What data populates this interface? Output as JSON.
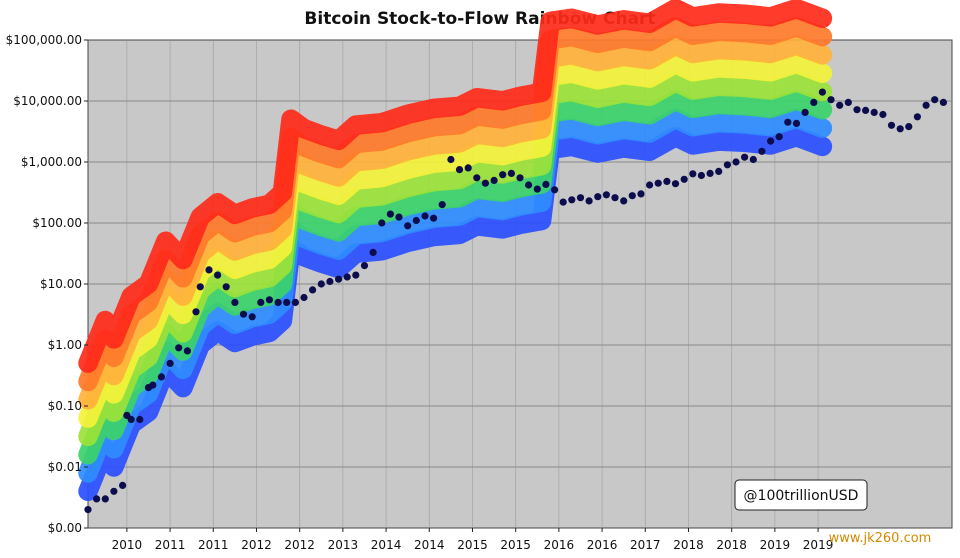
{
  "chart_data": {
    "type": "scatter",
    "title": "Bitcoin Stock-to-Flow Rainbow Chart",
    "xlabel": "",
    "ylabel": "",
    "y_scale": "log",
    "ylim": [
      0.001,
      100000
    ],
    "yticks": [
      {
        "value": 0.001,
        "label": "$0.00"
      },
      {
        "value": 0.01,
        "label": "$0.01"
      },
      {
        "value": 0.1,
        "label": "$0.10"
      },
      {
        "value": 1,
        "label": "$1.00"
      },
      {
        "value": 10,
        "label": "$10.00"
      },
      {
        "value": 100,
        "label": "$100.00"
      },
      {
        "value": 1000,
        "label": "$1,000.00"
      },
      {
        "value": 10000,
        "label": "$10,000.00"
      },
      {
        "value": 100000,
        "label": "$100,000.00"
      }
    ],
    "xticks": [
      {
        "pos": 0.045,
        "label": "2010"
      },
      {
        "pos": 0.095,
        "label": "2011"
      },
      {
        "pos": 0.145,
        "label": "2011"
      },
      {
        "pos": 0.195,
        "label": "2012"
      },
      {
        "pos": 0.245,
        "label": "2012"
      },
      {
        "pos": 0.295,
        "label": "2013"
      },
      {
        "pos": 0.345,
        "label": "2014"
      },
      {
        "pos": 0.395,
        "label": "2014"
      },
      {
        "pos": 0.445,
        "label": "2015"
      },
      {
        "pos": 0.495,
        "label": "2015"
      },
      {
        "pos": 0.545,
        "label": "2016"
      },
      {
        "pos": 0.595,
        "label": "2016"
      },
      {
        "pos": 0.645,
        "label": "2017"
      },
      {
        "pos": 0.695,
        "label": "2018"
      },
      {
        "pos": 0.745,
        "label": "2018"
      },
      {
        "pos": 0.795,
        "label": "2019"
      },
      {
        "pos": 0.845,
        "label": "2019"
      }
    ],
    "band_colors": [
      "#2a4fff",
      "#2f8cff",
      "#3bd36a",
      "#9be23a",
      "#f3f23a",
      "#ffb23a",
      "#ff7a2a",
      "#ff2a1a"
    ],
    "band_base": [
      [
        0.0,
        0.004
      ],
      [
        0.02,
        0.02
      ],
      [
        0.03,
        0.01
      ],
      [
        0.05,
        0.05
      ],
      [
        0.07,
        0.08
      ],
      [
        0.09,
        0.4
      ],
      [
        0.11,
        0.2
      ],
      [
        0.13,
        1.0
      ],
      [
        0.15,
        1.7
      ],
      [
        0.17,
        1.1
      ],
      [
        0.19,
        1.4
      ],
      [
        0.21,
        1.6
      ],
      [
        0.225,
        2.5
      ],
      [
        0.235,
        40
      ],
      [
        0.25,
        28
      ],
      [
        0.27,
        22
      ],
      [
        0.29,
        18
      ],
      [
        0.31,
        32
      ],
      [
        0.34,
        35
      ],
      [
        0.37,
        48
      ],
      [
        0.4,
        60
      ],
      [
        0.43,
        65
      ],
      [
        0.45,
        90
      ],
      [
        0.48,
        80
      ],
      [
        0.5,
        95
      ],
      [
        0.525,
        110
      ],
      [
        0.535,
        1600
      ],
      [
        0.56,
        1800
      ],
      [
        0.59,
        1400
      ],
      [
        0.62,
        1700
      ],
      [
        0.65,
        1500
      ],
      [
        0.68,
        2600
      ],
      [
        0.7,
        1900
      ],
      [
        0.73,
        2200
      ],
      [
        0.76,
        2100
      ],
      [
        0.79,
        1900
      ],
      [
        0.82,
        2600
      ],
      [
        0.85,
        1800
      ]
    ],
    "points": [
      {
        "x": 0.0,
        "y": 0.002
      },
      {
        "x": 0.01,
        "y": 0.003
      },
      {
        "x": 0.02,
        "y": 0.003
      },
      {
        "x": 0.03,
        "y": 0.004
      },
      {
        "x": 0.04,
        "y": 0.005
      },
      {
        "x": 0.045,
        "y": 0.07
      },
      {
        "x": 0.05,
        "y": 0.06
      },
      {
        "x": 0.06,
        "y": 0.06
      },
      {
        "x": 0.07,
        "y": 0.2
      },
      {
        "x": 0.075,
        "y": 0.22
      },
      {
        "x": 0.085,
        "y": 0.3
      },
      {
        "x": 0.095,
        "y": 0.5
      },
      {
        "x": 0.105,
        "y": 0.9
      },
      {
        "x": 0.115,
        "y": 0.8
      },
      {
        "x": 0.125,
        "y": 3.5
      },
      {
        "x": 0.13,
        "y": 9
      },
      {
        "x": 0.14,
        "y": 17
      },
      {
        "x": 0.15,
        "y": 14
      },
      {
        "x": 0.16,
        "y": 9
      },
      {
        "x": 0.17,
        "y": 5
      },
      {
        "x": 0.18,
        "y": 3.2
      },
      {
        "x": 0.19,
        "y": 2.9
      },
      {
        "x": 0.2,
        "y": 5
      },
      {
        "x": 0.21,
        "y": 5.5
      },
      {
        "x": 0.22,
        "y": 5
      },
      {
        "x": 0.23,
        "y": 5
      },
      {
        "x": 0.24,
        "y": 5
      },
      {
        "x": 0.25,
        "y": 6
      },
      {
        "x": 0.26,
        "y": 8
      },
      {
        "x": 0.27,
        "y": 10
      },
      {
        "x": 0.28,
        "y": 11
      },
      {
        "x": 0.29,
        "y": 12
      },
      {
        "x": 0.3,
        "y": 13
      },
      {
        "x": 0.31,
        "y": 14
      },
      {
        "x": 0.32,
        "y": 20
      },
      {
        "x": 0.33,
        "y": 33
      },
      {
        "x": 0.34,
        "y": 100
      },
      {
        "x": 0.35,
        "y": 140
      },
      {
        "x": 0.36,
        "y": 125
      },
      {
        "x": 0.37,
        "y": 90
      },
      {
        "x": 0.38,
        "y": 110
      },
      {
        "x": 0.39,
        "y": 130
      },
      {
        "x": 0.4,
        "y": 120
      },
      {
        "x": 0.41,
        "y": 200
      },
      {
        "x": 0.42,
        "y": 1100
      },
      {
        "x": 0.43,
        "y": 750
      },
      {
        "x": 0.44,
        "y": 800
      },
      {
        "x": 0.45,
        "y": 550
      },
      {
        "x": 0.46,
        "y": 450
      },
      {
        "x": 0.47,
        "y": 500
      },
      {
        "x": 0.48,
        "y": 620
      },
      {
        "x": 0.49,
        "y": 650
      },
      {
        "x": 0.5,
        "y": 550
      },
      {
        "x": 0.51,
        "y": 420
      },
      {
        "x": 0.52,
        "y": 360
      },
      {
        "x": 0.53,
        "y": 430
      },
      {
        "x": 0.54,
        "y": 350
      },
      {
        "x": 0.55,
        "y": 220
      },
      {
        "x": 0.56,
        "y": 240
      },
      {
        "x": 0.57,
        "y": 260
      },
      {
        "x": 0.58,
        "y": 230
      },
      {
        "x": 0.59,
        "y": 270
      },
      {
        "x": 0.6,
        "y": 290
      },
      {
        "x": 0.61,
        "y": 260
      },
      {
        "x": 0.62,
        "y": 230
      },
      {
        "x": 0.63,
        "y": 280
      },
      {
        "x": 0.64,
        "y": 300
      },
      {
        "x": 0.65,
        "y": 420
      },
      {
        "x": 0.66,
        "y": 450
      },
      {
        "x": 0.67,
        "y": 480
      },
      {
        "x": 0.68,
        "y": 440
      },
      {
        "x": 0.69,
        "y": 520
      },
      {
        "x": 0.7,
        "y": 640
      },
      {
        "x": 0.71,
        "y": 600
      },
      {
        "x": 0.72,
        "y": 650
      },
      {
        "x": 0.73,
        "y": 700
      },
      {
        "x": 0.74,
        "y": 900
      },
      {
        "x": 0.75,
        "y": 1000
      },
      {
        "x": 0.76,
        "y": 1200
      },
      {
        "x": 0.77,
        "y": 1100
      },
      {
        "x": 0.78,
        "y": 1500
      },
      {
        "x": 0.79,
        "y": 2200
      },
      {
        "x": 0.8,
        "y": 2600
      },
      {
        "x": 0.81,
        "y": 4500
      },
      {
        "x": 0.82,
        "y": 4300
      },
      {
        "x": 0.83,
        "y": 6500
      },
      {
        "x": 0.84,
        "y": 9500
      },
      {
        "x": 0.85,
        "y": 14000
      },
      {
        "x": 0.86,
        "y": 10500
      },
      {
        "x": 0.87,
        "y": 8500
      },
      {
        "x": 0.88,
        "y": 9500
      },
      {
        "x": 0.89,
        "y": 7200
      },
      {
        "x": 0.9,
        "y": 7000
      },
      {
        "x": 0.91,
        "y": 6500
      },
      {
        "x": 0.92,
        "y": 6000
      },
      {
        "x": 0.93,
        "y": 4000
      },
      {
        "x": 0.94,
        "y": 3500
      },
      {
        "x": 0.95,
        "y": 3800
      },
      {
        "x": 0.96,
        "y": 5500
      },
      {
        "x": 0.97,
        "y": 8500
      },
      {
        "x": 0.98,
        "y": 10500
      },
      {
        "x": 0.99,
        "y": 9500
      }
    ],
    "grid": true,
    "legend": "none"
  },
  "credit": "@100trillionUSD",
  "watermark": "www.jk260.com",
  "colors": {
    "plot_bg": "#c8c8c8",
    "grid": "#8a8a8a",
    "point": "#0d0d4d"
  }
}
